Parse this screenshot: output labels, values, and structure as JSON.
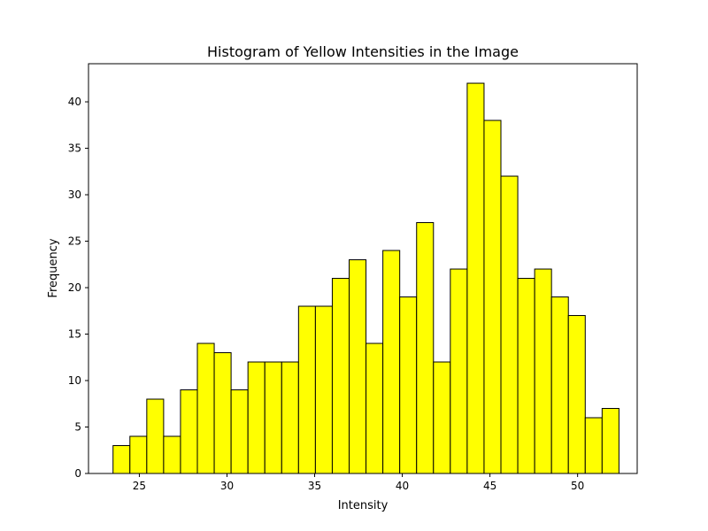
{
  "chart_data": {
    "type": "bar",
    "title": "Histogram of Yellow Intensities in the Image",
    "xlabel": "Intensity",
    "ylabel": "Frequency",
    "xlim": [
      22.1,
      53.4
    ],
    "ylim": [
      0,
      44.1
    ],
    "bin_start": 23.5,
    "bin_width": 0.962,
    "values": [
      3,
      4,
      8,
      4,
      9,
      14,
      13,
      9,
      12,
      12,
      12,
      18,
      18,
      21,
      23,
      14,
      24,
      19,
      27,
      12,
      22,
      42,
      38,
      32,
      21,
      22,
      19,
      17,
      6,
      7
    ],
    "x_ticks": [
      25,
      30,
      35,
      40,
      45,
      50
    ],
    "y_ticks": [
      0,
      5,
      10,
      15,
      20,
      25,
      30,
      35,
      40
    ],
    "bar_color": "#ffff00",
    "edge_color": "#000000",
    "grid": false,
    "legend": "none"
  }
}
